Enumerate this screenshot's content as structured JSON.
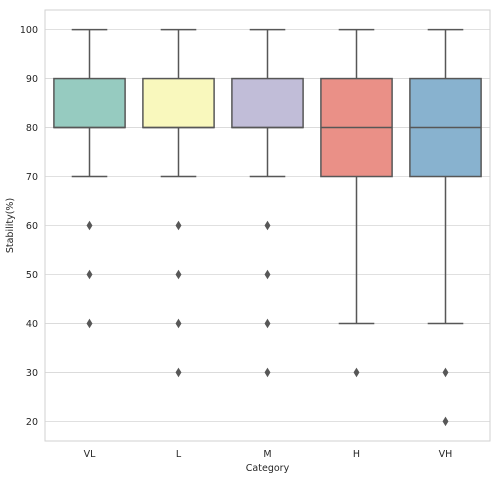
{
  "chart_data": {
    "type": "box",
    "title": "",
    "xlabel": "Category",
    "ylabel": "Stability(%)",
    "ylim": [
      16,
      104
    ],
    "yticks": [
      20,
      30,
      40,
      50,
      60,
      70,
      80,
      90,
      100
    ],
    "grid": true,
    "categories": [
      "VL",
      "L",
      "M",
      "H",
      "VH"
    ],
    "boxes": [
      {
        "category": "VL",
        "whisker_low": 70,
        "q1": 80,
        "median": 80,
        "q3": 90,
        "whisker_high": 100,
        "outliers": [
          60,
          50,
          40
        ],
        "color": "#96cbc0"
      },
      {
        "category": "L",
        "whisker_low": 70,
        "q1": 80,
        "median": 80,
        "q3": 90,
        "whisker_high": 100,
        "outliers": [
          60,
          50,
          40,
          30
        ],
        "color": "#f9f8bd"
      },
      {
        "category": "M",
        "whisker_low": 70,
        "q1": 80,
        "median": 80,
        "q3": 90,
        "whisker_high": 100,
        "outliers": [
          60,
          50,
          40,
          30
        ],
        "color": "#c1bdd8"
      },
      {
        "category": "H",
        "whisker_low": 40,
        "q1": 70,
        "median": 80,
        "q3": 90,
        "whisker_high": 100,
        "outliers": [
          30
        ],
        "color": "#ea9087"
      },
      {
        "category": "VH",
        "whisker_low": 40,
        "q1": 70,
        "median": 80,
        "q3": 90,
        "whisker_high": 100,
        "outliers": [
          30,
          20
        ],
        "color": "#88b2cf"
      }
    ],
    "line_color": "#575757",
    "grid_color": "#d6d6d6",
    "frame_color": "#d2d2d2"
  }
}
